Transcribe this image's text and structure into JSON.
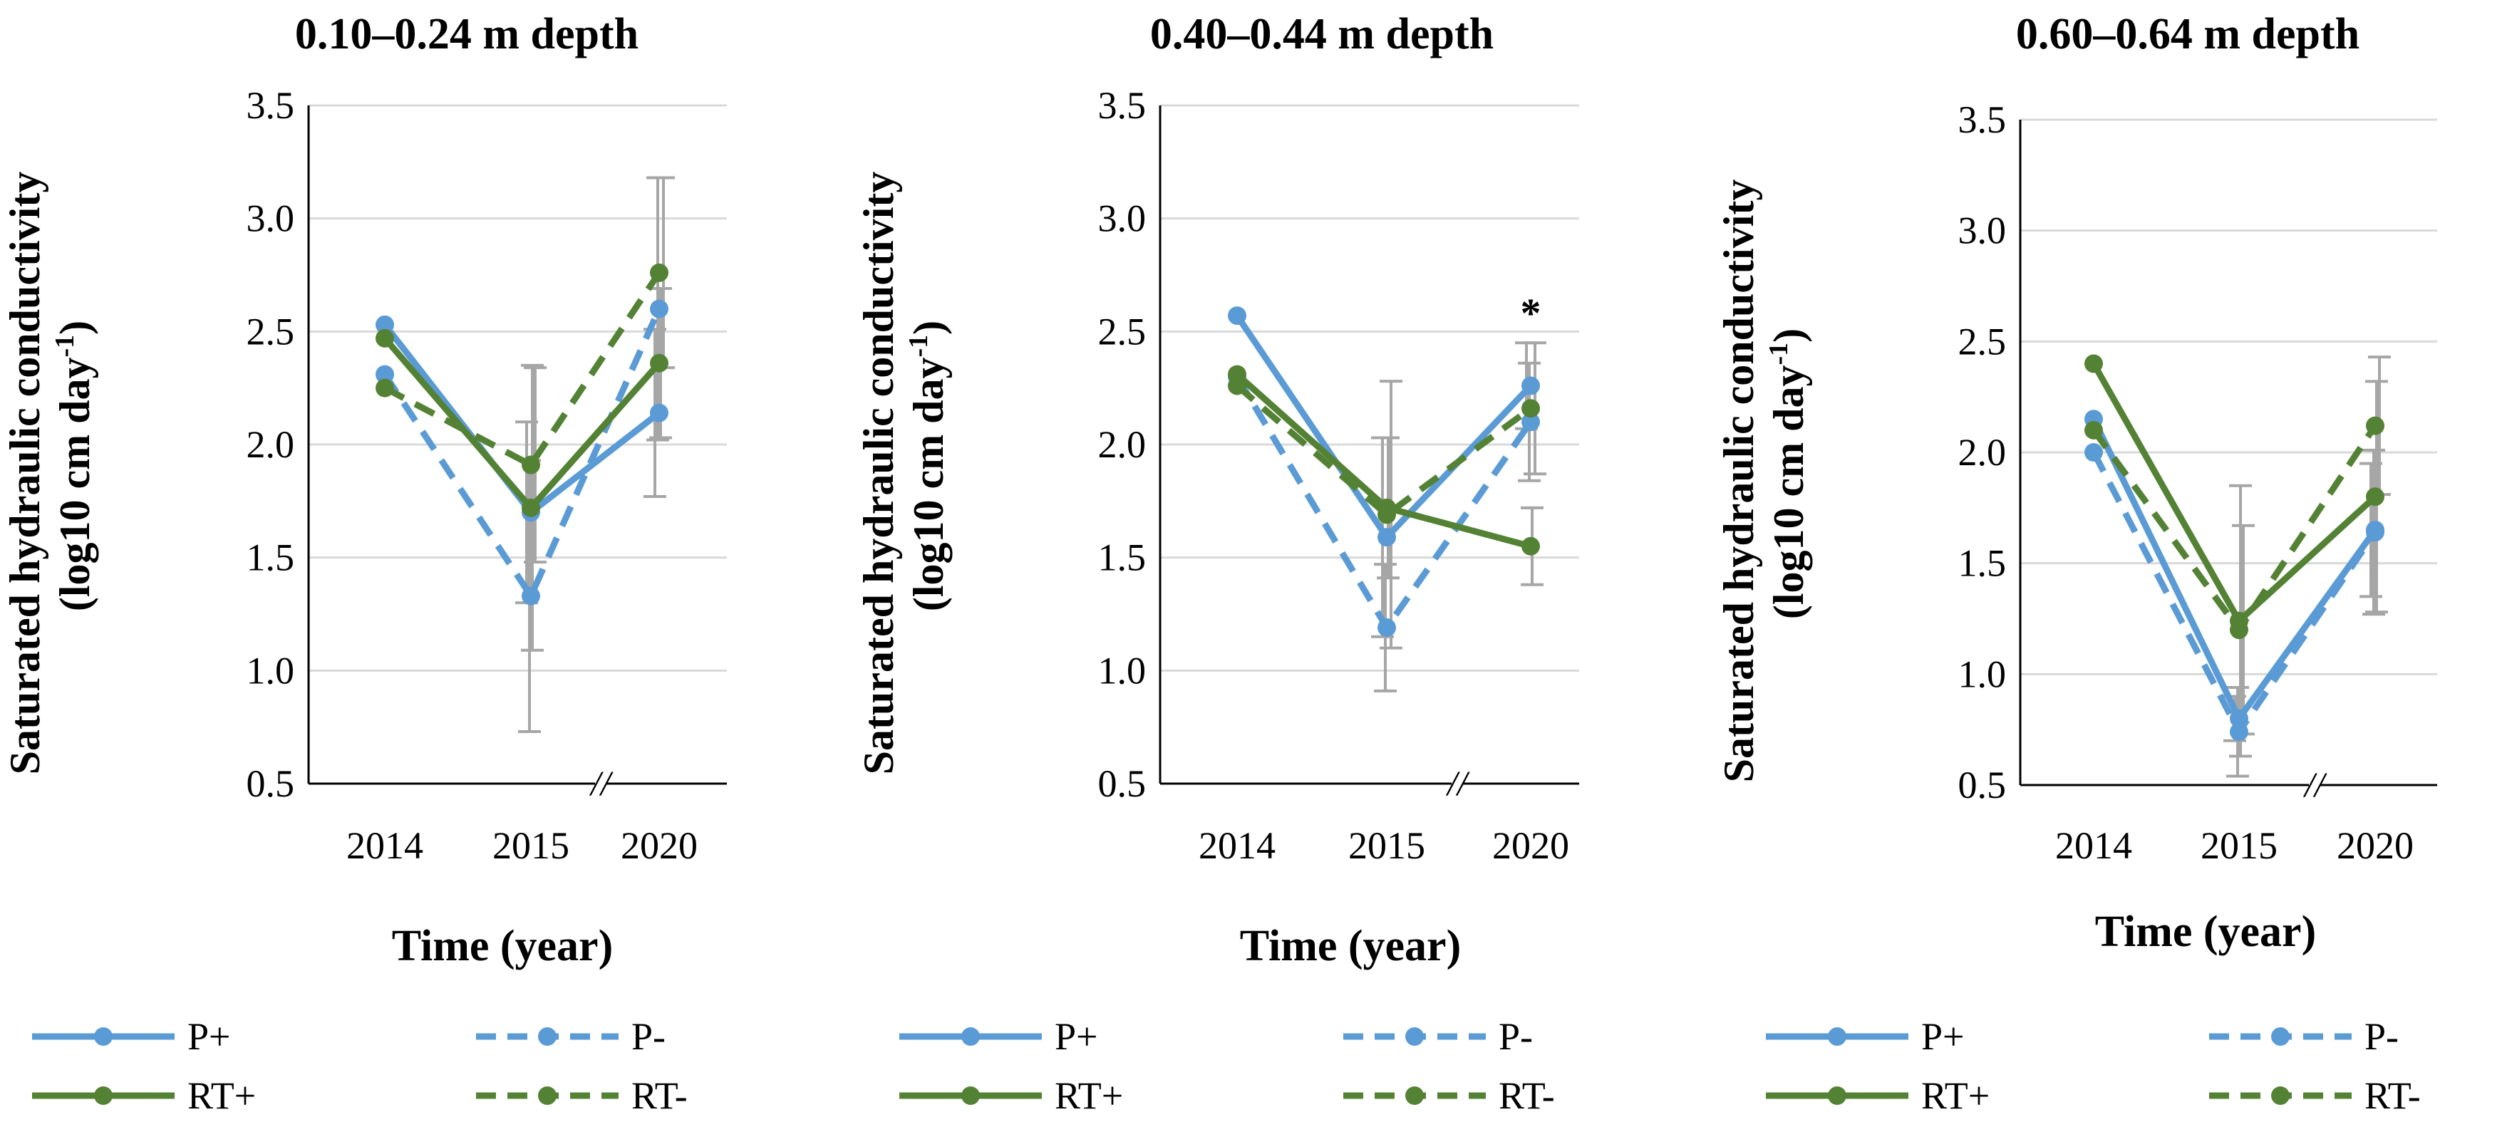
{
  "chart_data": [
    {
      "type": "line",
      "title": "0.10–0.24 m depth",
      "xlabel": "Time (year)",
      "ylabel_line1": "Saturated hydraulic conductivity",
      "ylabel_line2_pre": "(log10 cm day",
      "ylabel_sup": "-1",
      "ylabel_line2_post": ")",
      "categories": [
        "2014",
        "2015",
        "2020"
      ],
      "axis_break": "//",
      "yticks": [
        "0.5",
        "1.0",
        "1.5",
        "2.0",
        "2.5",
        "3.0",
        "3.5"
      ],
      "ylim": [
        0.5,
        3.5
      ],
      "grid": true,
      "series": [
        {
          "name": "P+",
          "color": "#5b9bd5",
          "dash": "solid",
          "values": [
            2.53,
            1.7,
            2.14
          ],
          "errors": [
            null,
            0.4,
            0.37
          ]
        },
        {
          "name": "P-",
          "color": "#5b9bd5",
          "dash": "dashed",
          "values": [
            2.31,
            1.33,
            2.6
          ],
          "errors": [
            null,
            0.6,
            0.58
          ]
        },
        {
          "name": "RT+",
          "color": "#548235",
          "dash": "solid",
          "values": [
            2.47,
            1.72,
            2.36
          ],
          "errors": [
            null,
            0.63,
            0.33
          ]
        },
        {
          "name": "RT-",
          "color": "#548235",
          "dash": "dashed",
          "values": [
            2.25,
            1.91,
            2.76
          ],
          "errors": [
            null,
            0.43,
            0.42
          ]
        }
      ],
      "annotation": ""
    },
    {
      "type": "line",
      "title": "0.40–0.44 m depth",
      "xlabel": "Time (year)",
      "ylabel_line1": "Saturated hydraulic conductivity",
      "ylabel_line2_pre": "(log10 cm day",
      "ylabel_sup": "-1",
      "ylabel_line2_post": ")",
      "categories": [
        "2014",
        "2015",
        "2020"
      ],
      "axis_break": "//",
      "yticks": [
        "0.5",
        "1.0",
        "1.5",
        "2.0",
        "2.5",
        "3.0",
        "3.5"
      ],
      "ylim": [
        0.5,
        3.5
      ],
      "grid": true,
      "series": [
        {
          "name": "P+",
          "color": "#5b9bd5",
          "dash": "solid",
          "values": [
            2.57,
            1.59,
            2.26
          ],
          "errors": [
            null,
            0.44,
            0.19
          ]
        },
        {
          "name": "P-",
          "color": "#5b9bd5",
          "dash": "dashed",
          "values": [
            2.3,
            1.19,
            2.1
          ],
          "errors": [
            null,
            0.28,
            0.26
          ]
        },
        {
          "name": "RT+",
          "color": "#548235",
          "dash": "solid",
          "values": [
            2.31,
            1.72,
            1.55
          ],
          "errors": [
            null,
            0.31,
            0.17
          ]
        },
        {
          "name": "RT-",
          "color": "#548235",
          "dash": "dashed",
          "values": [
            2.26,
            1.69,
            2.16
          ],
          "errors": [
            null,
            0.59,
            0.29
          ]
        }
      ],
      "annotation": "*"
    },
    {
      "type": "line",
      "title": "0.60–0.64 m depth",
      "xlabel": "Time (year)",
      "ylabel_line1": "Saturated hydraulic conductivity",
      "ylabel_line2_pre": "(log10 cm day",
      "ylabel_sup": "-1",
      "ylabel_line2_post": ")",
      "categories": [
        "2014",
        "2015",
        "2020"
      ],
      "axis_break": "//",
      "yticks": [
        "0.5",
        "1.0",
        "1.5",
        "2.0",
        "2.5",
        "3.0",
        "3.5"
      ],
      "ylim": [
        0.5,
        3.5
      ],
      "grid": true,
      "series": [
        {
          "name": "P+",
          "color": "#5b9bd5",
          "dash": "solid",
          "values": [
            2.15,
            0.8,
            1.65
          ],
          "errors": [
            null,
            0.1,
            0.3
          ]
        },
        {
          "name": "P-",
          "color": "#5b9bd5",
          "dash": "dashed",
          "values": [
            2.0,
            0.74,
            1.64
          ],
          "errors": [
            null,
            0.2,
            0.37
          ]
        },
        {
          "name": "RT+",
          "color": "#548235",
          "dash": "solid",
          "values": [
            2.4,
            1.24,
            1.8
          ],
          "errors": [
            null,
            0.61,
            0.52
          ]
        },
        {
          "name": "RT-",
          "color": "#548235",
          "dash": "dashed",
          "values": [
            2.1,
            1.2,
            2.12
          ],
          "errors": [
            null,
            0.47,
            0.31
          ]
        }
      ],
      "annotation": ""
    }
  ],
  "legend": [
    {
      "name": "P+",
      "color": "#5b9bd5",
      "dash": "solid"
    },
    {
      "name": "P-",
      "color": "#5b9bd5",
      "dash": "dashed"
    },
    {
      "name": "RT+",
      "color": "#548235",
      "dash": "solid"
    },
    {
      "name": "RT-",
      "color": "#548235",
      "dash": "dashed"
    }
  ],
  "errorbar_color": "#a6a6a6"
}
